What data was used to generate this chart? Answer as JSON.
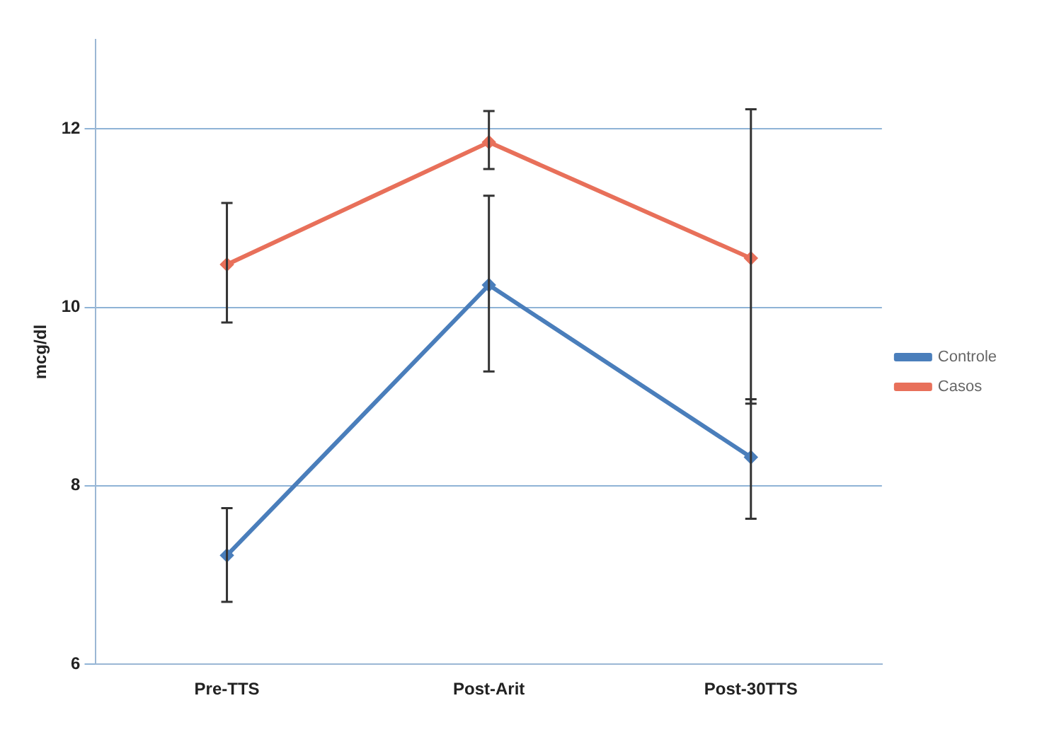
{
  "chart_data": {
    "type": "line",
    "ylabel": "mcg/dl",
    "categories": [
      "Pre-TTS",
      "Post-Arit",
      "Post-30TTS"
    ],
    "series": [
      {
        "name": "Controle",
        "color": "#4a7ebb",
        "values": [
          7.22,
          10.25,
          8.32
        ],
        "errors": [
          [
            6.7,
            7.75
          ],
          [
            9.28,
            11.25
          ],
          [
            7.63,
            8.97
          ]
        ]
      },
      {
        "name": "Casos",
        "color": "#e8705a",
        "values": [
          10.48,
          11.85,
          10.55
        ],
        "errors": [
          [
            9.83,
            11.17
          ],
          [
            11.55,
            12.2
          ],
          [
            8.92,
            12.22
          ]
        ]
      }
    ],
    "ylim": [
      6,
      13
    ],
    "yticks": [
      6,
      8,
      10,
      12
    ],
    "grid": "y",
    "legend": "right",
    "marker": "diamond"
  }
}
